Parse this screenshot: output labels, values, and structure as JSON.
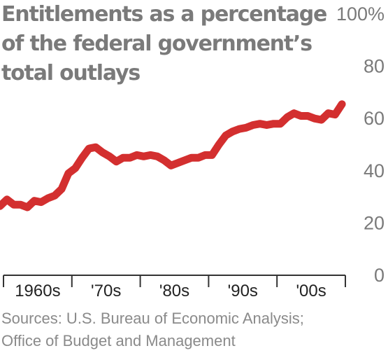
{
  "chart_data": {
    "type": "line",
    "title_lines": [
      "Entitlements as a percentage",
      "of the federal government’s",
      "total outlays"
    ],
    "xlabel": "",
    "ylabel": "",
    "y_tick_labels": [
      "100%",
      "80",
      "60",
      "40",
      "20",
      "0"
    ],
    "y_tick_values": [
      100,
      80,
      60,
      40,
      20,
      0
    ],
    "ylim": [
      0,
      100
    ],
    "x_tick_labels": [
      "1960s",
      "'70s",
      "'80s",
      "'90s",
      "'00s"
    ],
    "xlim": [
      1959.5,
      2009.5
    ],
    "series": [
      {
        "color": "#d32f2f",
        "x": [
          1959,
          1960,
          1961,
          1962,
          1963,
          1964,
          1965,
          1966,
          1967,
          1968,
          1969,
          1970,
          1971,
          1972,
          1973,
          1974,
          1975,
          1976,
          1977,
          1978,
          1979,
          1980,
          1981,
          1982,
          1983,
          1984,
          1985,
          1986,
          1987,
          1988,
          1989,
          1990,
          1991,
          1992,
          1993,
          1994,
          1995,
          1996,
          1997,
          1998,
          1999,
          2000,
          2001,
          2002,
          2003,
          2004,
          2005,
          2006,
          2007,
          2008,
          2009
        ],
        "values": [
          26.5,
          29,
          27,
          27,
          26,
          28.5,
          28,
          29.5,
          30.5,
          33,
          39,
          41,
          45,
          48.5,
          49,
          47,
          45.5,
          43.5,
          45,
          45,
          46,
          45.5,
          46,
          45.5,
          44,
          42,
          43,
          44,
          45,
          45,
          46,
          46,
          50,
          53.5,
          55,
          56,
          56.5,
          57.5,
          58,
          57.5,
          58,
          58,
          60.5,
          62,
          61,
          61,
          60,
          59.5,
          62,
          61.5,
          65.5
        ]
      }
    ],
    "grid": false,
    "legend": "none"
  },
  "sources": [
    "Sources: U.S. Bureau of Economic Analysis;",
    "Office of Budget and Management"
  ]
}
